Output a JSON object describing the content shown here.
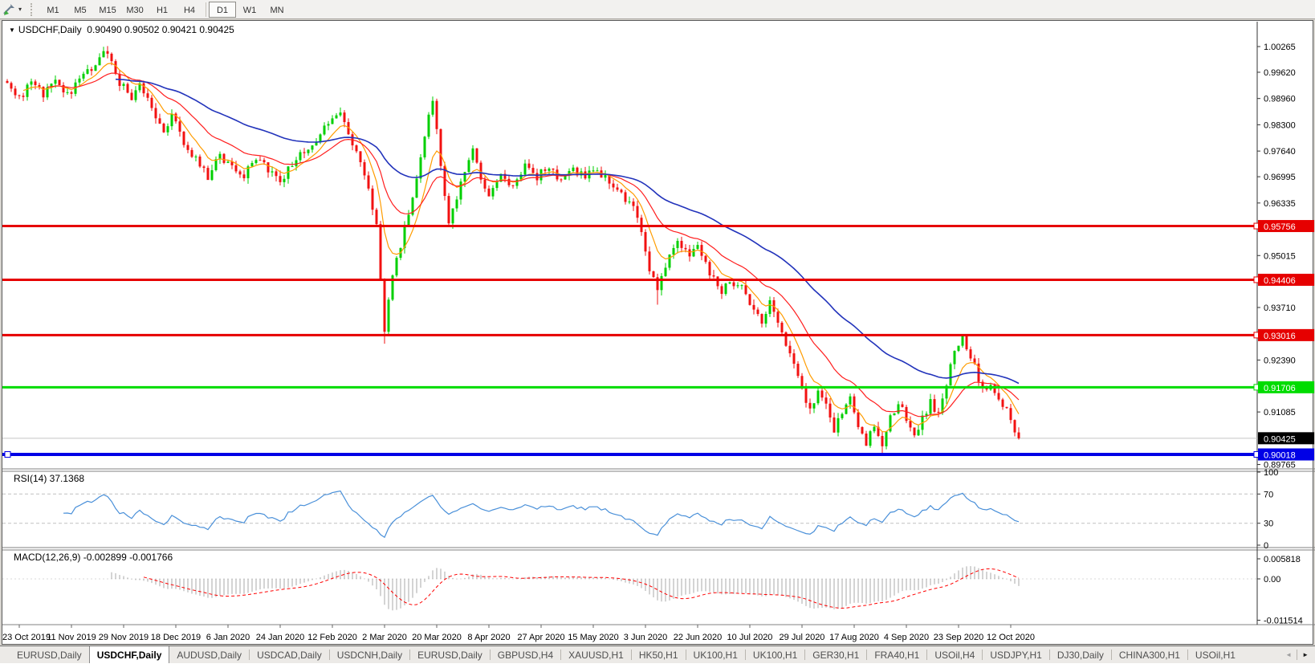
{
  "toolbar": {
    "timeframes": [
      "M1",
      "M5",
      "M15",
      "M30",
      "H1",
      "H4",
      "D1",
      "W1",
      "MN"
    ],
    "active_timeframe": "D1",
    "icons": {
      "dropdown_glyph": "▾"
    }
  },
  "chart": {
    "title": {
      "marker": "▼",
      "symbol_period": "USDCHF,Daily",
      "ohlc": "0.90490 0.90502 0.90421 0.90425"
    },
    "price_axis_labels": [
      "1.00265",
      "0.99620",
      "0.98960",
      "0.98300",
      "0.97640",
      "0.96995",
      "0.96335",
      "0.95015",
      "0.93710",
      "0.92390",
      "0.91085",
      "0.89765"
    ]
  },
  "rsi": {
    "label": "RSI(14) 37.1368",
    "axis_labels": [
      {
        "text": "100",
        "v": 100
      },
      {
        "text": "70",
        "v": 70
      },
      {
        "text": "30",
        "v": 30
      },
      {
        "text": "0",
        "v": 0
      }
    ],
    "level_lines": [
      70,
      30
    ],
    "line_color": "#4a90d9"
  },
  "macd": {
    "label": "MACD(12,26,9) -0.002899 -0.001766",
    "axis_labels": [
      {
        "text": "0.005818",
        "v": 0.005818
      },
      {
        "text": "0.00",
        "v": 0
      },
      {
        "text": "-0.011514",
        "v": -0.011514
      }
    ],
    "bar_color": "#a8a8a8",
    "signal_color": "#ff0000"
  },
  "date_axis": [
    "23 Oct 2019",
    "11 Nov 2019",
    "29 Nov 2019",
    "18 Dec 2019",
    "6 Jan 2020",
    "24 Jan 2020",
    "12 Feb 2020",
    "2 Mar 2020",
    "20 Mar 2020",
    "8 Apr 2020",
    "27 Apr 2020",
    "15 May 2020",
    "3 Jun 2020",
    "22 Jun 2020",
    "10 Jul 2020",
    "29 Jul 2020",
    "17 Aug 2020",
    "4 Sep 2020",
    "23 Sep 2020",
    "12 Oct 2020"
  ],
  "tabs": {
    "items": [
      "EURUSD,Daily",
      "USDCHF,Daily",
      "AUDUSD,Daily",
      "USDCAD,Daily",
      "USDCNH,Daily",
      "EURUSD,Daily",
      "GBPUSD,H4",
      "XAUUSD,H1",
      "HK50,H1",
      "UK100,H1",
      "UK100,H1",
      "GER30,H1",
      "FRA40,H1",
      "USOil,H4",
      "USDJPY,H1",
      "DJ30,Daily",
      "CHINA300,H1",
      "USOil,H1"
    ],
    "active_index": 1,
    "scroll_left_glyph": "◄",
    "scroll_right_glyph": "►"
  },
  "colors": {
    "candle_up": "#00cf00",
    "candle_down": "#f21111",
    "hline_red": "#e60000",
    "hline_green": "#00dc00",
    "hline_blue": "#0000e6",
    "current_price_line": "#c4c4c4",
    "badge_black": "#000000",
    "ma_fast": "#ff9c00",
    "ma_mid": "#ff1e1e",
    "ma_slow": "#2233bb"
  },
  "chart_data": {
    "type": "candlestick",
    "symbol": "USDCHF",
    "timeframe": "Daily",
    "last_ohlc": {
      "open": 0.9049,
      "high": 0.90502,
      "low": 0.90421,
      "close": 0.90425
    },
    "y_axis_range": [
      0.89765,
      1.00265
    ],
    "num_bars": 253,
    "bars_per_date_tick": 13,
    "x_axis_dates": [
      "23 Oct 2019",
      "11 Nov 2019",
      "29 Nov 2019",
      "18 Dec 2019",
      "6 Jan 2020",
      "24 Jan 2020",
      "12 Feb 2020",
      "2 Mar 2020",
      "20 Mar 2020",
      "8 Apr 2020",
      "27 Apr 2020",
      "15 May 2020",
      "3 Jun 2020",
      "22 Jun 2020",
      "10 Jul 2020",
      "29 Jul 2020",
      "17 Aug 2020",
      "4 Sep 2020",
      "23 Sep 2020",
      "12 Oct 2020"
    ],
    "close_path_anchors": [
      [
        0,
        0.9935
      ],
      [
        3,
        0.99
      ],
      [
        6,
        0.9932
      ],
      [
        9,
        0.9906
      ],
      [
        12,
        0.994
      ],
      [
        15,
        0.9908
      ],
      [
        18,
        0.994
      ],
      [
        21,
        0.9975
      ],
      [
        24,
        1.0015
      ],
      [
        26,
        0.999
      ],
      [
        28,
        0.9935
      ],
      [
        31,
        0.9895
      ],
      [
        33,
        0.993
      ],
      [
        36,
        0.9875
      ],
      [
        39,
        0.982
      ],
      [
        41,
        0.985
      ],
      [
        44,
        0.979
      ],
      [
        47,
        0.9745
      ],
      [
        50,
        0.9702
      ],
      [
        53,
        0.975
      ],
      [
        56,
        0.9725
      ],
      [
        59,
        0.97
      ],
      [
        62,
        0.9745
      ],
      [
        65,
        0.9715
      ],
      [
        68,
        0.969
      ],
      [
        71,
        0.9735
      ],
      [
        74,
        0.976
      ],
      [
        77,
        0.9795
      ],
      [
        80,
        0.984
      ],
      [
        83,
        0.9855
      ],
      [
        85,
        0.98
      ],
      [
        88,
        0.973
      ],
      [
        90,
        0.966
      ],
      [
        92,
        0.958
      ],
      [
        94,
        0.931
      ],
      [
        95,
        0.94
      ],
      [
        96,
        0.945
      ],
      [
        98,
        0.953
      ],
      [
        100,
        0.961
      ],
      [
        102,
        0.97
      ],
      [
        104,
        0.98
      ],
      [
        106,
        0.989
      ],
      [
        108,
        0.973
      ],
      [
        110,
        0.959
      ],
      [
        112,
        0.965
      ],
      [
        114,
        0.972
      ],
      [
        116,
        0.976
      ],
      [
        118,
        0.97
      ],
      [
        120,
        0.966
      ],
      [
        123,
        0.971
      ],
      [
        126,
        0.9675
      ],
      [
        129,
        0.973
      ],
      [
        132,
        0.97
      ],
      [
        135,
        0.9725
      ],
      [
        138,
        0.969
      ],
      [
        141,
        0.972
      ],
      [
        144,
        0.97
      ],
      [
        147,
        0.9715
      ],
      [
        150,
        0.969
      ],
      [
        153,
        0.966
      ],
      [
        156,
        0.962
      ],
      [
        158,
        0.956
      ],
      [
        160,
        0.947
      ],
      [
        162,
        0.942
      ],
      [
        164,
        0.948
      ],
      [
        167,
        0.954
      ],
      [
        170,
        0.95
      ],
      [
        172,
        0.952
      ],
      [
        175,
        0.946
      ],
      [
        178,
        0.941
      ],
      [
        180,
        0.944
      ],
      [
        183,
        0.942
      ],
      [
        185,
        0.938
      ],
      [
        188,
        0.934
      ],
      [
        190,
        0.939
      ],
      [
        193,
        0.93
      ],
      [
        196,
        0.923
      ],
      [
        198,
        0.916
      ],
      [
        200,
        0.911
      ],
      [
        202,
        0.917
      ],
      [
        204,
        0.912
      ],
      [
        206,
        0.906
      ],
      [
        208,
        0.911
      ],
      [
        210,
        0.915
      ],
      [
        212,
        0.908
      ],
      [
        214,
        0.903
      ],
      [
        216,
        0.908
      ],
      [
        218,
        0.902
      ],
      [
        220,
        0.909
      ],
      [
        222,
        0.913
      ],
      [
        224,
        0.909
      ],
      [
        226,
        0.905
      ],
      [
        228,
        0.909
      ],
      [
        230,
        0.913
      ],
      [
        232,
        0.91
      ],
      [
        234,
        0.918
      ],
      [
        236,
        0.926
      ],
      [
        238,
        0.93
      ],
      [
        240,
        0.925
      ],
      [
        242,
        0.919
      ],
      [
        244,
        0.916
      ],
      [
        245,
        0.918
      ],
      [
        247,
        0.915
      ],
      [
        249,
        0.911
      ],
      [
        250,
        0.909
      ],
      [
        251,
        0.906
      ],
      [
        252,
        0.90425
      ]
    ],
    "high_overrides": {
      "24": 1.0026,
      "106": 0.9901,
      "238": 0.9302
    },
    "low_overrides": {
      "50": 0.9695,
      "94": 0.928,
      "162": 0.9378,
      "218": 0.8998
    },
    "horizontal_lines": [
      {
        "price": 0.95756,
        "label": "0.95756",
        "color": "#e60000",
        "width": 3
      },
      {
        "price": 0.94406,
        "label": "0.94406",
        "color": "#e60000",
        "width": 3
      },
      {
        "price": 0.93016,
        "label": "0.93016",
        "color": "#e60000",
        "width": 3
      },
      {
        "price": 0.91706,
        "label": "0.91706",
        "color": "#00dc00",
        "width": 3
      },
      {
        "price": 0.90018,
        "label": "0.90018",
        "color": "#0000e6",
        "width": 4
      }
    ],
    "current_price_line": {
      "price": 0.90425,
      "label": "0.90425"
    },
    "moving_averages": [
      {
        "type": "EMA",
        "period": 8,
        "color": "#ff9c00"
      },
      {
        "type": "EMA",
        "period": 21,
        "color": "#ff1e1e"
      },
      {
        "type": "EMA",
        "period": 55,
        "color": "#2233bb"
      }
    ],
    "indicators": [
      {
        "name": "RSI",
        "period": 14,
        "last_value": 37.1368,
        "levels": [
          70,
          30
        ]
      },
      {
        "name": "MACD",
        "params": [
          12,
          26,
          9
        ],
        "last_main": -0.002899,
        "last_signal": -0.001766,
        "axis_values": [
          0.005818,
          0.0,
          -0.011514
        ]
      }
    ]
  }
}
